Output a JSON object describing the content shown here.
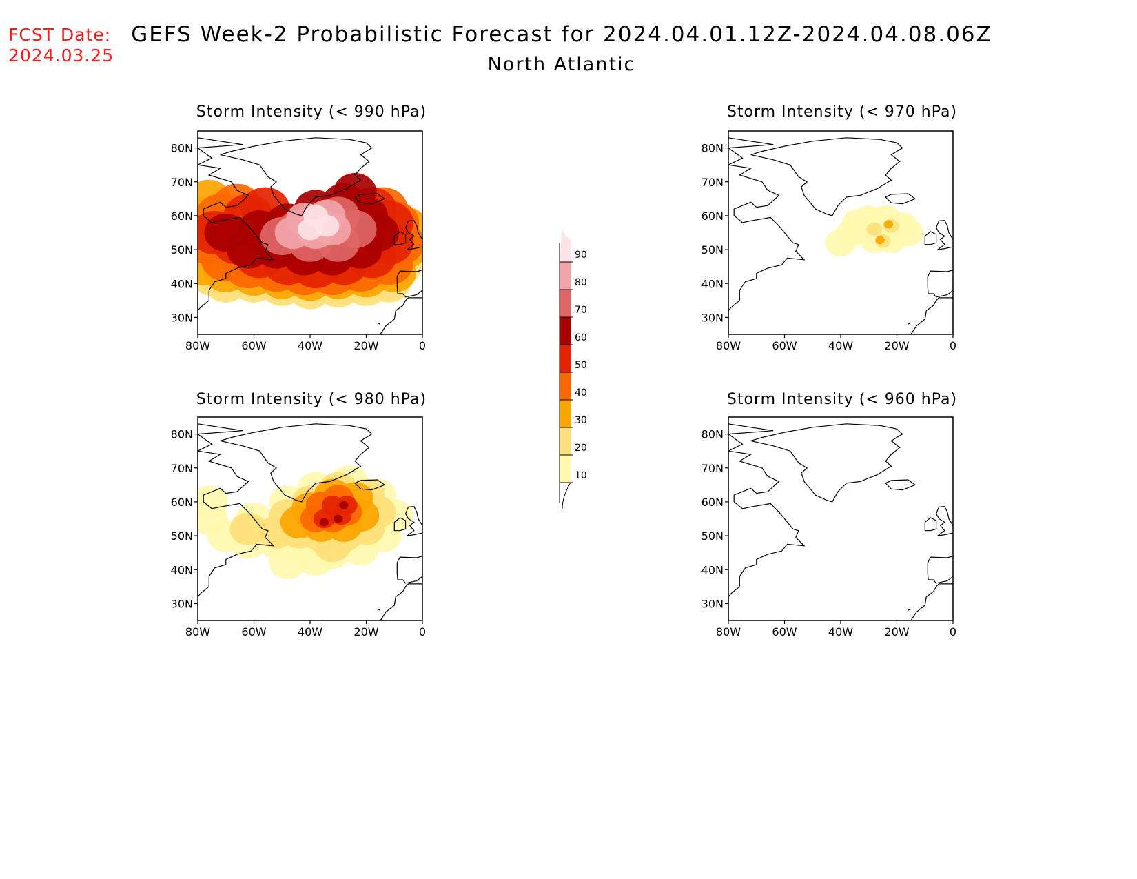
{
  "fcst_date": {
    "label": "FCST Date:",
    "value": "2024.03.25"
  },
  "title": "GEFS Week-2 Probabilistic Forecast for 2024.04.01.12Z-2024.04.08.06Z",
  "subtitle": "North Atlantic",
  "axes": {
    "lat_ticks": [
      "80N",
      "70N",
      "60N",
      "50N",
      "40N",
      "30N"
    ],
    "lon_ticks": [
      "80W",
      "60W",
      "40W",
      "20W",
      "0"
    ]
  },
  "panels": [
    {
      "id": "p990",
      "title": "Storm Intensity (< 990 hPa)",
      "intensity": "high"
    },
    {
      "id": "p970",
      "title": "Storm Intensity (< 970 hPa)",
      "intensity": "low"
    },
    {
      "id": "p980",
      "title": "Storm Intensity (< 980 hPa)",
      "intensity": "medium"
    },
    {
      "id": "p960",
      "title": "Storm Intensity (< 960 hPa)",
      "intensity": "none"
    }
  ],
  "colorbar": {
    "levels": [
      "10",
      "20",
      "30",
      "40",
      "50",
      "60",
      "70",
      "80",
      "90"
    ],
    "colors": [
      "#fff9b0",
      "#fde07a",
      "#fca400",
      "#fc6800",
      "#e42400",
      "#a80000",
      "#e06666",
      "#f1a5a9",
      "#fde3e6"
    ]
  }
}
